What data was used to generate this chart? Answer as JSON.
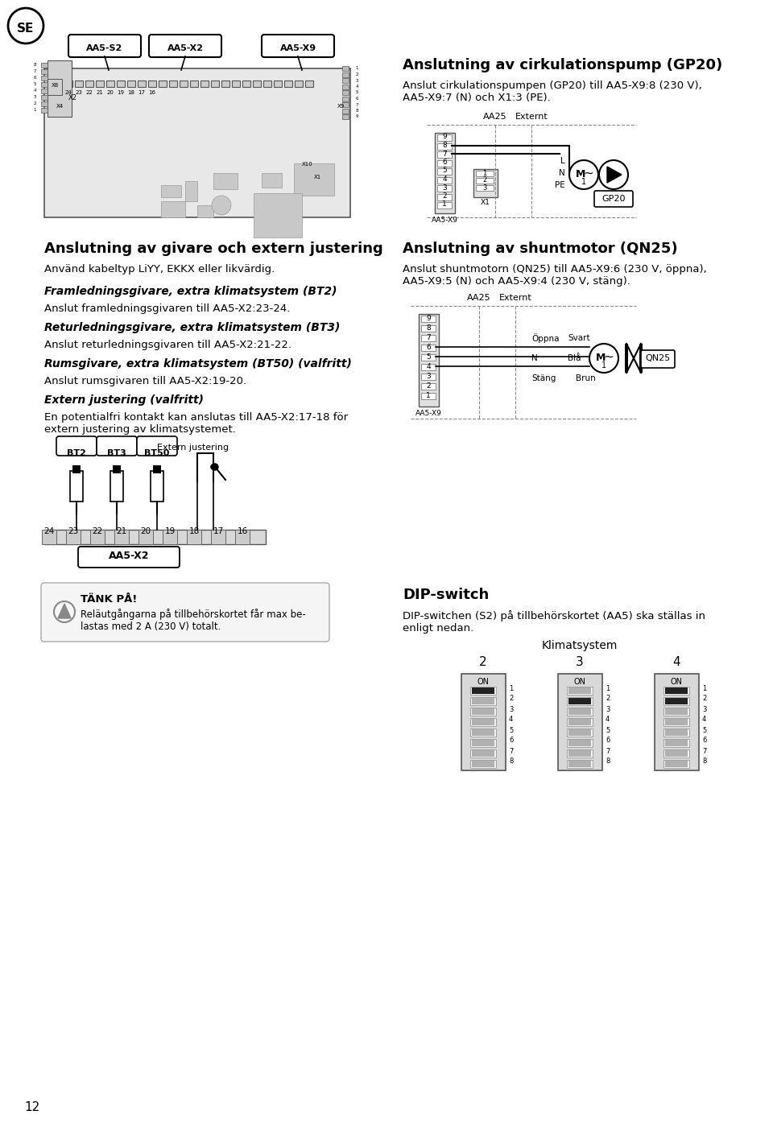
{
  "bg_color": "#ffffff",
  "text_color": "#1a1a1a",
  "page_number": "12",
  "se_label": "SE",
  "section1_title": "Anslutning av cirkulationspump (GP20)",
  "section1_body": "Anslut cirkulationspumpen (GP20) till AA5-X9:8 (230 V),\nAA5-X9:7 (N) och X1:3 (PE).",
  "section2_title": "Anslutning av givare och extern justering",
  "section2_body1": "Använd kabeltyp LiYY, EKKX eller likvärdig.",
  "section2_sub1_title": "Framledningsgivare, extra klimatsystem (BT2)",
  "section2_sub1_body": "Anslut framledningsgivaren till AA5-X2:23-24.",
  "section2_sub2_title": "Returledningsgivare, extra klimatsystem (BT3)",
  "section2_sub2_body": "Anslut returledningsgivaren till AA5-X2:21-22.",
  "section2_sub3_title": "Rumsgivare, extra klimatsystem (BT50) (valfritt)",
  "section2_sub3_body": "Anslut rumsgivaren till AA5-X2:19-20.",
  "section2_sub4_title": "Extern justering (valfritt)",
  "section2_sub4_body": "En potentialfri kontakt kan anslutas till AA5-X2:17-18 för\nextern justering av klimatsystemet.",
  "section3_title": "Anslutning av shuntmotor (QN25)",
  "section3_body": "Anslut shuntmotorn (QN25) till AA5-X9:6 (230 V, öppna),\nAA5-X9:5 (N) och AA5-X9:4 (230 V, stäng).",
  "section4_title": "DIP-switch",
  "section4_body": "DIP-switchen (S2) på tillbehörskortet (AA5) ska ställas in\nenligt nedan.",
  "section4_subtitle": "Klimatsystem",
  "section4_cols": [
    "2",
    "3",
    "4"
  ]
}
